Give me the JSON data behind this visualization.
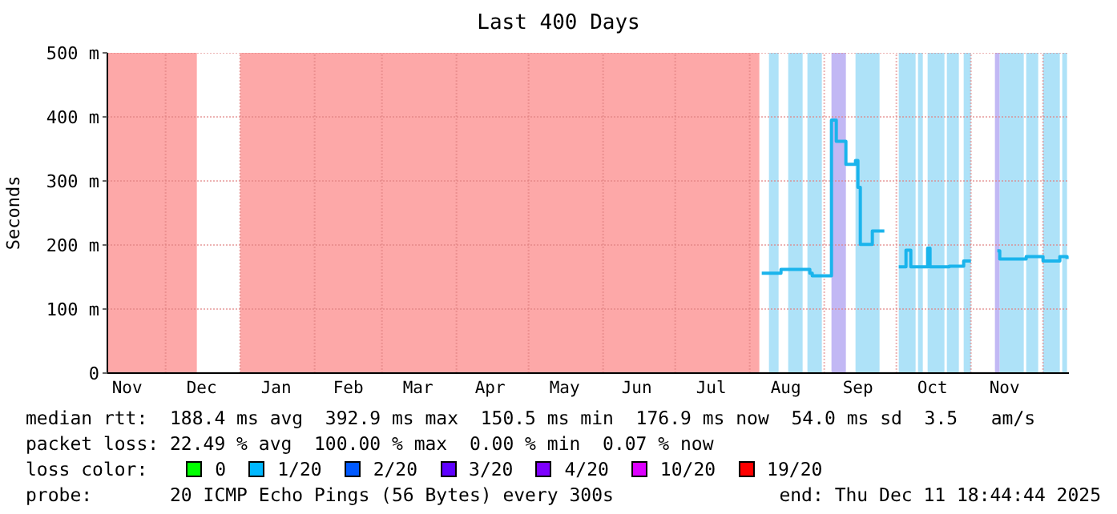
{
  "chart_data": {
    "type": "step",
    "title": "Last 400 Days",
    "ylabel": "Seconds",
    "x": [
      "2025-08-06",
      "2025-08-14",
      "2025-08-26",
      "2025-08-27",
      "2025-09-04",
      "2025-09-06",
      "2025-09-10",
      "2025-09-14",
      "2025-09-15",
      "2025-09-16",
      "2025-09-21",
      "2025-09-26",
      "2025-09-28",
      "2025-10-02",
      "2025-10-05",
      "2025-10-07",
      "2025-10-14",
      "2025-10-15",
      "2025-10-23",
      "2025-10-29",
      "2025-11-01",
      "2025-11-06",
      "2025-11-12",
      "2025-11-13",
      "2025-11-24",
      "2025-12-01",
      "2025-12-08",
      "2025-12-11"
    ],
    "series": [
      {
        "color": "#1ab4ec",
        "values": [
          156,
          162,
          156,
          152,
          395,
          362,
          326,
          332,
          290,
          201,
          222,
          222,
          null,
          166,
          192,
          166,
          195,
          166,
          167,
          175,
          175,
          null,
          191,
          178,
          182,
          175,
          182,
          178
        ]
      }
    ],
    "xlim": [
      "2024-11-06T18:44",
      "2025-12-11T18:44"
    ],
    "xticks": [
      {
        "value": "2024-11-15",
        "label": "Nov"
      },
      {
        "value": "2024-12-01",
        "label": null
      },
      {
        "value": "2024-12-16",
        "label": "Dec"
      },
      {
        "value": "2025-01-01",
        "label": null
      },
      {
        "value": "2025-01-16",
        "label": "Jan"
      },
      {
        "value": "2025-02-01",
        "label": null
      },
      {
        "value": "2025-02-15",
        "label": "Feb"
      },
      {
        "value": "2025-03-01",
        "label": null
      },
      {
        "value": "2025-03-16",
        "label": "Mar"
      },
      {
        "value": "2025-04-01",
        "label": null
      },
      {
        "value": "2025-04-15",
        "label": "Apr"
      },
      {
        "value": "2025-05-01",
        "label": null
      },
      {
        "value": "2025-05-16",
        "label": "May"
      },
      {
        "value": "2025-06-01",
        "label": null
      },
      {
        "value": "2025-06-15",
        "label": "Jun"
      },
      {
        "value": "2025-07-01",
        "label": null
      },
      {
        "value": "2025-07-16",
        "label": "Jul"
      },
      {
        "value": "2025-08-01",
        "label": null
      },
      {
        "value": "2025-08-16",
        "label": "Aug"
      },
      {
        "value": "2025-09-01",
        "label": null
      },
      {
        "value": "2025-09-15",
        "label": "Sep"
      },
      {
        "value": "2025-10-01",
        "label": null
      },
      {
        "value": "2025-10-16",
        "label": "Oct"
      },
      {
        "value": "2025-11-01",
        "label": null
      },
      {
        "value": "2025-11-15",
        "label": "Nov"
      },
      {
        "value": "2025-12-01",
        "label": null
      }
    ],
    "ylim": [
      0,
      500
    ],
    "yticks": [
      {
        "value": 0,
        "label": "0"
      },
      {
        "value": 100,
        "label": "100 m"
      },
      {
        "value": 200,
        "label": "200 m"
      },
      {
        "value": 300,
        "label": "300 m"
      },
      {
        "value": 400,
        "label": "400 m"
      },
      {
        "value": 500,
        "label": "500 m"
      }
    ],
    "grid": true,
    "bands": [
      {
        "axis": "x",
        "from": "2024-11-06T18:44",
        "to": "2024-12-14",
        "color": "#fda8a8"
      },
      {
        "axis": "x",
        "from": "2025-01-01",
        "to": "2025-08-05",
        "color": "#fda8a8"
      },
      {
        "axis": "x",
        "from": "2025-08-09",
        "to": "2025-08-13",
        "color": "#aee2f8"
      },
      {
        "axis": "x",
        "from": "2025-08-17",
        "to": "2025-08-23",
        "color": "#aee2f8"
      },
      {
        "axis": "x",
        "from": "2025-08-25",
        "to": "2025-08-31",
        "color": "#aee2f8"
      },
      {
        "axis": "x",
        "from": "2025-09-04",
        "to": "2025-09-10",
        "color": "#c2b8f4"
      },
      {
        "axis": "x",
        "from": "2025-09-14",
        "to": "2025-09-24",
        "color": "#aee2f8"
      },
      {
        "axis": "x",
        "from": "2025-10-02",
        "to": "2025-10-09",
        "color": "#aee2f8"
      },
      {
        "axis": "x",
        "from": "2025-10-10",
        "to": "2025-10-12",
        "color": "#aee2f8"
      },
      {
        "axis": "x",
        "from": "2025-10-14",
        "to": "2025-10-21",
        "color": "#aee2f8"
      },
      {
        "axis": "x",
        "from": "2025-10-22",
        "to": "2025-10-27",
        "color": "#aee2f8"
      },
      {
        "axis": "x",
        "from": "2025-10-29",
        "to": "2025-11-01",
        "color": "#aee2f8"
      },
      {
        "axis": "x",
        "from": "2025-11-11",
        "to": "2025-11-13",
        "color": "#c2b8f4"
      },
      {
        "axis": "x",
        "from": "2025-11-13",
        "to": "2025-11-23",
        "color": "#aee2f8"
      },
      {
        "axis": "x",
        "from": "2025-11-24",
        "to": "2025-11-29",
        "color": "#aee2f8"
      },
      {
        "axis": "x",
        "from": "2025-12-01",
        "to": "2025-12-08",
        "color": "#aee2f8"
      },
      {
        "axis": "x",
        "from": "2025-12-09",
        "to": "2025-12-11",
        "color": "#aee2f8"
      }
    ],
    "annotations": [
      "median rtt:  188.4 ms avg  392.9 ms max  150.5 ms min  176.9 ms now  54.0 ms sd  3.5   am/s",
      "packet loss: 22.49 % avg  100.00 % max  0.00 % min  0.07 % now",
      "loss color:",
      "0",
      "1/20",
      "2/20",
      "3/20",
      "4/20",
      "10/20",
      "19/20",
      "probe:       20 ICMP Echo Pings (56 Bytes) every 300s",
      "end: Thu Dec 11 18:44:44 2025"
    ]
  }
}
